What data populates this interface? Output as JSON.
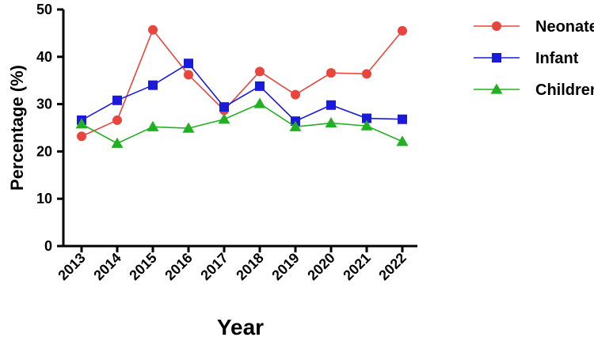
{
  "chart_data": {
    "type": "line",
    "title": "",
    "xlabel": "Year",
    "ylabel": "Percentage (%)",
    "x": [
      "2013",
      "2014",
      "2015",
      "2016",
      "2017",
      "2018",
      "2019",
      "2020",
      "2021",
      "2022"
    ],
    "ylim": [
      0,
      50
    ],
    "yticks": [
      0,
      10,
      20,
      30,
      40,
      50
    ],
    "grid": false,
    "legend_position": "top-right",
    "series": [
      {
        "name": "Neonate",
        "color": "#e8453c",
        "marker": "circle",
        "values": [
          23.2,
          26.6,
          45.7,
          36.2,
          28.7,
          36.9,
          32.0,
          36.6,
          36.4,
          45.5
        ]
      },
      {
        "name": "Infant",
        "color": "#1a1adb",
        "marker": "square",
        "values": [
          26.6,
          30.8,
          34.0,
          38.6,
          29.4,
          33.8,
          26.4,
          29.8,
          27.0,
          26.8
        ]
      },
      {
        "name": "Children",
        "color": "#22b022",
        "marker": "triangle",
        "values": [
          25.8,
          21.7,
          25.2,
          24.9,
          26.8,
          30.1,
          25.2,
          26.0,
          25.4,
          22.1
        ]
      }
    ]
  }
}
